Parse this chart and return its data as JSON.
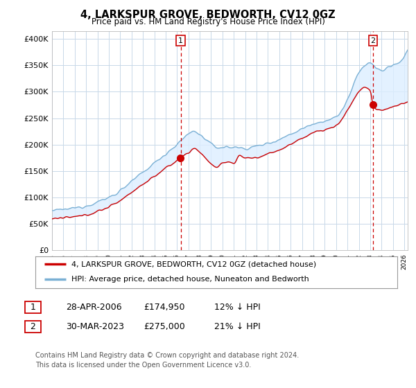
{
  "title": "4, LARKSPUR GROVE, BEDWORTH, CV12 0GZ",
  "subtitle": "Price paid vs. HM Land Registry's House Price Index (HPI)",
  "ylabel_ticks": [
    "£0",
    "£50K",
    "£100K",
    "£150K",
    "£200K",
    "£250K",
    "£300K",
    "£350K",
    "£400K"
  ],
  "ytick_values": [
    0,
    50000,
    100000,
    150000,
    200000,
    250000,
    300000,
    350000,
    400000
  ],
  "ylim": [
    0,
    415000
  ],
  "xlim_start": 1995.0,
  "xlim_end": 2026.3,
  "hpi_color": "#7ab0d4",
  "price_color": "#cc0000",
  "fill_color": "#ddeeff",
  "marker1_x": 2006.32,
  "marker1_y": 174950,
  "marker2_x": 2023.24,
  "marker2_y": 275000,
  "annotation1_label": "1",
  "annotation2_label": "2",
  "legend_line1": "4, LARKSPUR GROVE, BEDWORTH, CV12 0GZ (detached house)",
  "legend_line2": "HPI: Average price, detached house, Nuneaton and Bedworth",
  "table_row1_num": "1",
  "table_row1_date": "28-APR-2006",
  "table_row1_price": "£174,950",
  "table_row1_hpi": "12% ↓ HPI",
  "table_row2_num": "2",
  "table_row2_date": "30-MAR-2023",
  "table_row2_price": "£275,000",
  "table_row2_hpi": "21% ↓ HPI",
  "footnote1": "Contains HM Land Registry data © Crown copyright and database right 2024.",
  "footnote2": "This data is licensed under the Open Government Licence v3.0.",
  "background_color": "#ffffff",
  "grid_color": "#c8d8e8"
}
